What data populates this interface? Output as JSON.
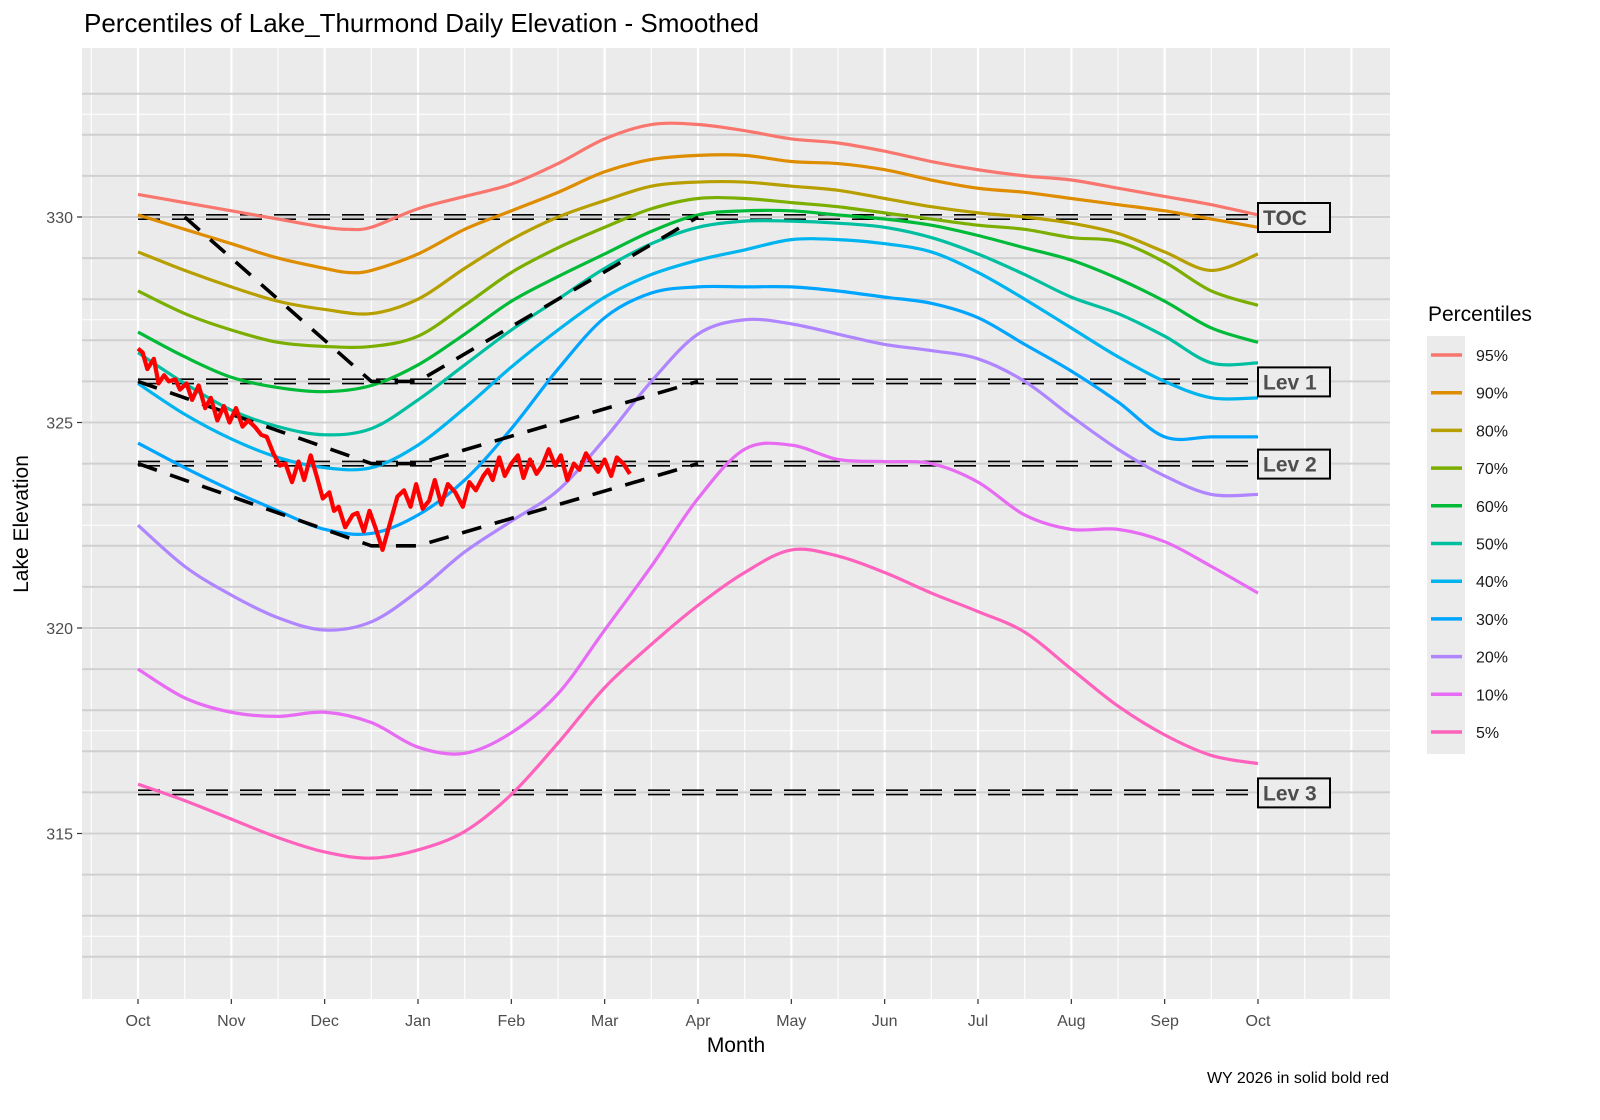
{
  "chart_data": {
    "type": "line",
    "title": "Percentiles of Lake_Thurmond Daily Elevation - Smoothed",
    "xlabel": "Month",
    "ylabel": "Lake Elevation",
    "caption": "WY 2026 in solid  bold red",
    "x_ticks": [
      "Oct",
      "Nov",
      "Dec",
      "Jan",
      "Feb",
      "Mar",
      "Apr",
      "May",
      "Jun",
      "Jul",
      "Aug",
      "Sep",
      "Oct"
    ],
    "y_ticks": [
      315,
      320,
      325,
      330
    ],
    "xlim": [
      -0.6,
      13.3
    ],
    "ylim": [
      311.1,
      334.2
    ],
    "grid": true,
    "legend": {
      "title": "Percentiles",
      "placement": "right",
      "entries": [
        "95%",
        "90%",
        "80%",
        "70%",
        "60%",
        "50%",
        "40%",
        "30%",
        "20%",
        "10%",
        " 5%"
      ]
    },
    "x_unit": "months since Oct 1",
    "series": [
      {
        "name": "95%",
        "color": "#F8766D",
        "x": [
          0,
          0.5,
          1,
          1.5,
          2,
          2.25,
          2.5,
          3,
          3.5,
          4,
          4.5,
          5,
          5.5,
          6,
          6.5,
          7,
          7.5,
          8,
          8.5,
          9,
          9.5,
          10,
          10.5,
          11,
          11.5,
          12
        ],
        "y": [
          330.55,
          330.35,
          330.15,
          329.95,
          329.75,
          329.7,
          329.75,
          330.2,
          330.5,
          330.8,
          331.3,
          331.9,
          332.25,
          332.25,
          332.1,
          331.9,
          331.8,
          331.6,
          331.35,
          331.15,
          331.0,
          330.9,
          330.7,
          330.5,
          330.3,
          330.05
        ]
      },
      {
        "name": "90%",
        "color": "#DE8C00",
        "x": [
          0,
          0.5,
          1,
          1.5,
          2,
          2.25,
          2.5,
          3,
          3.5,
          4,
          4.5,
          5,
          5.5,
          6,
          6.5,
          7,
          7.5,
          8,
          8.5,
          9,
          9.5,
          10,
          10.5,
          11,
          11.5,
          12
        ],
        "y": [
          330.05,
          329.7,
          329.35,
          329.0,
          328.75,
          328.65,
          328.7,
          329.1,
          329.7,
          330.15,
          330.6,
          331.1,
          331.4,
          331.5,
          331.5,
          331.35,
          331.3,
          331.15,
          330.9,
          330.7,
          330.6,
          330.45,
          330.3,
          330.15,
          329.95,
          329.75
        ]
      },
      {
        "name": "80%",
        "color": "#B79F00",
        "x": [
          0,
          0.5,
          1,
          1.5,
          2,
          2.5,
          3,
          3.5,
          4,
          4.5,
          5,
          5.5,
          6,
          6.5,
          7,
          7.5,
          8,
          8.5,
          9,
          9.5,
          10,
          10.5,
          11,
          11.5,
          12
        ],
        "y": [
          329.15,
          328.7,
          328.3,
          327.95,
          327.75,
          327.65,
          328.0,
          328.75,
          329.45,
          330.0,
          330.4,
          330.75,
          330.85,
          330.85,
          330.75,
          330.65,
          330.45,
          330.25,
          330.1,
          330.0,
          329.85,
          329.6,
          329.15,
          328.7,
          329.1
        ]
      },
      {
        "name": "70%",
        "color": "#7CAE00",
        "x": [
          0,
          0.5,
          1,
          1.5,
          2,
          2.5,
          3,
          3.5,
          4,
          4.5,
          5,
          5.5,
          6,
          6.5,
          7,
          7.5,
          8,
          8.5,
          9,
          9.5,
          10,
          10.5,
          11,
          11.5,
          12
        ],
        "y": [
          328.2,
          327.65,
          327.25,
          326.95,
          326.85,
          326.85,
          327.1,
          327.85,
          328.65,
          329.25,
          329.75,
          330.2,
          330.45,
          330.45,
          330.35,
          330.25,
          330.1,
          329.95,
          329.8,
          329.7,
          329.5,
          329.4,
          328.9,
          328.2,
          327.85
        ]
      },
      {
        "name": "60%",
        "color": "#00BA38",
        "x": [
          0,
          0.5,
          1,
          1.5,
          2,
          2.5,
          3,
          3.5,
          4,
          4.5,
          5,
          5.5,
          6,
          6.5,
          7,
          7.5,
          8,
          8.5,
          9,
          9.5,
          10,
          10.5,
          11,
          11.5,
          12
        ],
        "y": [
          327.2,
          326.6,
          326.1,
          325.85,
          325.75,
          325.9,
          326.4,
          327.15,
          327.95,
          328.55,
          329.1,
          329.65,
          330.05,
          330.15,
          330.15,
          330.05,
          329.95,
          329.8,
          329.55,
          329.25,
          328.95,
          328.5,
          327.95,
          327.3,
          326.95
        ]
      },
      {
        "name": "50%",
        "color": "#00BFA0",
        "x": [
          0,
          0.5,
          1,
          1.5,
          2,
          2.5,
          3,
          3.5,
          4,
          4.5,
          5,
          5.5,
          6,
          6.5,
          7,
          7.5,
          8,
          8.5,
          9,
          9.5,
          10,
          10.5,
          11,
          11.5,
          12
        ],
        "y": [
          326.7,
          325.95,
          325.3,
          324.9,
          324.7,
          324.85,
          325.55,
          326.4,
          327.25,
          328.0,
          328.75,
          329.35,
          329.75,
          329.9,
          329.9,
          329.85,
          329.75,
          329.5,
          329.1,
          328.6,
          328.05,
          327.65,
          327.1,
          326.45,
          326.45
        ]
      },
      {
        "name": "40%",
        "color": "#00B4EF",
        "x": [
          0,
          0.5,
          1,
          1.5,
          2,
          2.5,
          3,
          3.5,
          4,
          4.5,
          5,
          5.5,
          6,
          6.5,
          7,
          7.5,
          8,
          8.5,
          9,
          9.5,
          10,
          10.5,
          11,
          11.5,
          12
        ],
        "y": [
          325.95,
          325.2,
          324.6,
          324.15,
          323.9,
          323.9,
          324.45,
          325.35,
          326.35,
          327.25,
          328.05,
          328.6,
          328.95,
          329.2,
          329.45,
          329.45,
          329.35,
          329.15,
          328.65,
          328.0,
          327.3,
          326.6,
          326.0,
          325.6,
          325.6
        ]
      },
      {
        "name": "30%",
        "color": "#00A5FF",
        "x": [
          0,
          0.5,
          1,
          1.5,
          2,
          2.5,
          3,
          3.5,
          4,
          4.5,
          5,
          5.5,
          6,
          6.5,
          7,
          7.5,
          8,
          8.5,
          9,
          9.5,
          10,
          10.5,
          11,
          11.5,
          12
        ],
        "y": [
          324.5,
          323.9,
          323.35,
          322.85,
          322.4,
          322.3,
          322.75,
          323.6,
          324.85,
          326.3,
          327.55,
          328.15,
          328.3,
          328.3,
          328.3,
          328.2,
          328.05,
          327.9,
          327.55,
          326.9,
          326.25,
          325.5,
          324.65,
          324.65,
          324.65
        ]
      },
      {
        "name": "20%",
        "color": "#AF86FF",
        "x": [
          0,
          0.5,
          1,
          1.5,
          2,
          2.5,
          3,
          3.5,
          4,
          4.5,
          5,
          5.5,
          6,
          6.5,
          7,
          7.5,
          8,
          8.5,
          9,
          9.5,
          10,
          10.5,
          11,
          11.5,
          12
        ],
        "y": [
          322.5,
          321.5,
          320.8,
          320.25,
          319.95,
          320.15,
          320.9,
          321.85,
          322.6,
          323.35,
          324.6,
          326.0,
          327.15,
          327.5,
          327.4,
          327.15,
          326.9,
          326.75,
          326.55,
          326.0,
          325.15,
          324.35,
          323.7,
          323.25,
          323.25
        ]
      },
      {
        "name": "10%",
        "color": "#E76BF3",
        "x": [
          0,
          0.5,
          1,
          1.5,
          2,
          2.5,
          3,
          3.5,
          4,
          4.5,
          5,
          5.5,
          6,
          6.5,
          7,
          7.5,
          8,
          8.5,
          9,
          9.5,
          10,
          10.5,
          11,
          11.5,
          12
        ],
        "y": [
          319.0,
          318.3,
          317.95,
          317.85,
          317.95,
          317.7,
          317.1,
          316.95,
          317.45,
          318.4,
          319.95,
          321.5,
          323.15,
          324.35,
          324.45,
          324.1,
          324.05,
          324.0,
          323.55,
          322.75,
          322.4,
          322.4,
          322.1,
          321.5,
          320.85
        ]
      },
      {
        "name": "5%",
        "color": "#FF62BC",
        "x": [
          0,
          0.5,
          1,
          1.5,
          2,
          2.5,
          3,
          3.5,
          4,
          4.5,
          5,
          5.5,
          6,
          6.5,
          7,
          7.5,
          8,
          8.5,
          9,
          9.5,
          10,
          10.5,
          11,
          11.5,
          12
        ],
        "y": [
          316.2,
          315.8,
          315.35,
          314.9,
          314.55,
          314.4,
          314.6,
          315.05,
          315.95,
          317.2,
          318.55,
          319.6,
          320.55,
          321.35,
          321.9,
          321.75,
          321.35,
          320.85,
          320.4,
          319.9,
          319.0,
          318.1,
          317.4,
          316.9,
          316.7
        ]
      }
    ],
    "wy2026": {
      "name": "WY 2026",
      "color": "#FF0000",
      "x": [
        0,
        0.05,
        0.1,
        0.17,
        0.22,
        0.28,
        0.33,
        0.4,
        0.45,
        0.52,
        0.58,
        0.65,
        0.72,
        0.78,
        0.85,
        0.92,
        0.98,
        1.05,
        1.12,
        1.18,
        1.25,
        1.32,
        1.38,
        1.45,
        1.52,
        1.58,
        1.65,
        1.72,
        1.78,
        1.85,
        1.92,
        1.98,
        2.05,
        2.1,
        2.15,
        2.22,
        2.3,
        2.35,
        2.42,
        2.48,
        2.55,
        2.62,
        2.7,
        2.78,
        2.85,
        2.92,
        2.98,
        3.05,
        3.12,
        3.18,
        3.25,
        3.32,
        3.4,
        3.48,
        3.55,
        3.62,
        3.7,
        3.75,
        3.8,
        3.87,
        3.93,
        4.0,
        4.07,
        4.13,
        4.2,
        4.27,
        4.33,
        4.4,
        4.47,
        4.53,
        4.6,
        4.67,
        4.73,
        4.8,
        4.87,
        4.93,
        5.0,
        5.07,
        5.13,
        5.2,
        5.27
      ],
      "y": [
        326.8,
        326.7,
        326.3,
        326.55,
        325.95,
        326.15,
        326.0,
        326.05,
        325.8,
        325.95,
        325.55,
        325.9,
        325.35,
        325.6,
        325.05,
        325.4,
        325.0,
        325.35,
        324.9,
        325.05,
        324.9,
        324.7,
        324.65,
        324.25,
        323.95,
        324.0,
        323.55,
        324.05,
        323.6,
        324.2,
        323.65,
        323.15,
        323.3,
        322.85,
        322.95,
        322.45,
        322.75,
        322.8,
        322.35,
        322.85,
        322.4,
        321.9,
        322.55,
        323.2,
        323.35,
        322.95,
        323.5,
        322.9,
        323.1,
        323.6,
        323.0,
        323.5,
        323.3,
        322.95,
        323.55,
        323.35,
        323.7,
        323.85,
        323.6,
        324.15,
        323.7,
        324.0,
        324.2,
        323.65,
        324.1,
        323.75,
        323.95,
        324.35,
        323.95,
        324.2,
        323.6,
        324.0,
        323.85,
        324.25,
        324.0,
        323.8,
        324.1,
        323.7,
        324.15,
        324.0,
        323.75
      ]
    },
    "guide_curves": [
      {
        "name": "upper-guide",
        "x": [
          0.5,
          2.5,
          3.0,
          6.0
        ],
        "y": [
          330.0,
          326.0,
          326.0,
          330.0
        ]
      },
      {
        "name": "lev1-guide",
        "x": [
          0,
          2.5,
          3.0,
          6.0
        ],
        "y": [
          326.0,
          324.0,
          324.0,
          326.0
        ]
      },
      {
        "name": "lev2-guide",
        "x": [
          0,
          2.5,
          3.0,
          6.0
        ],
        "y": [
          324.0,
          322.0,
          322.0,
          324.0
        ]
      }
    ],
    "reference_lines": [
      {
        "label": "TOC",
        "y": 330
      },
      {
        "label": "Lev 1",
        "y": 326
      },
      {
        "label": "Lev 2",
        "y": 324
      },
      {
        "label": "Lev 3",
        "y": 316
      }
    ],
    "hlines_every_foot": [
      312,
      333
    ]
  }
}
